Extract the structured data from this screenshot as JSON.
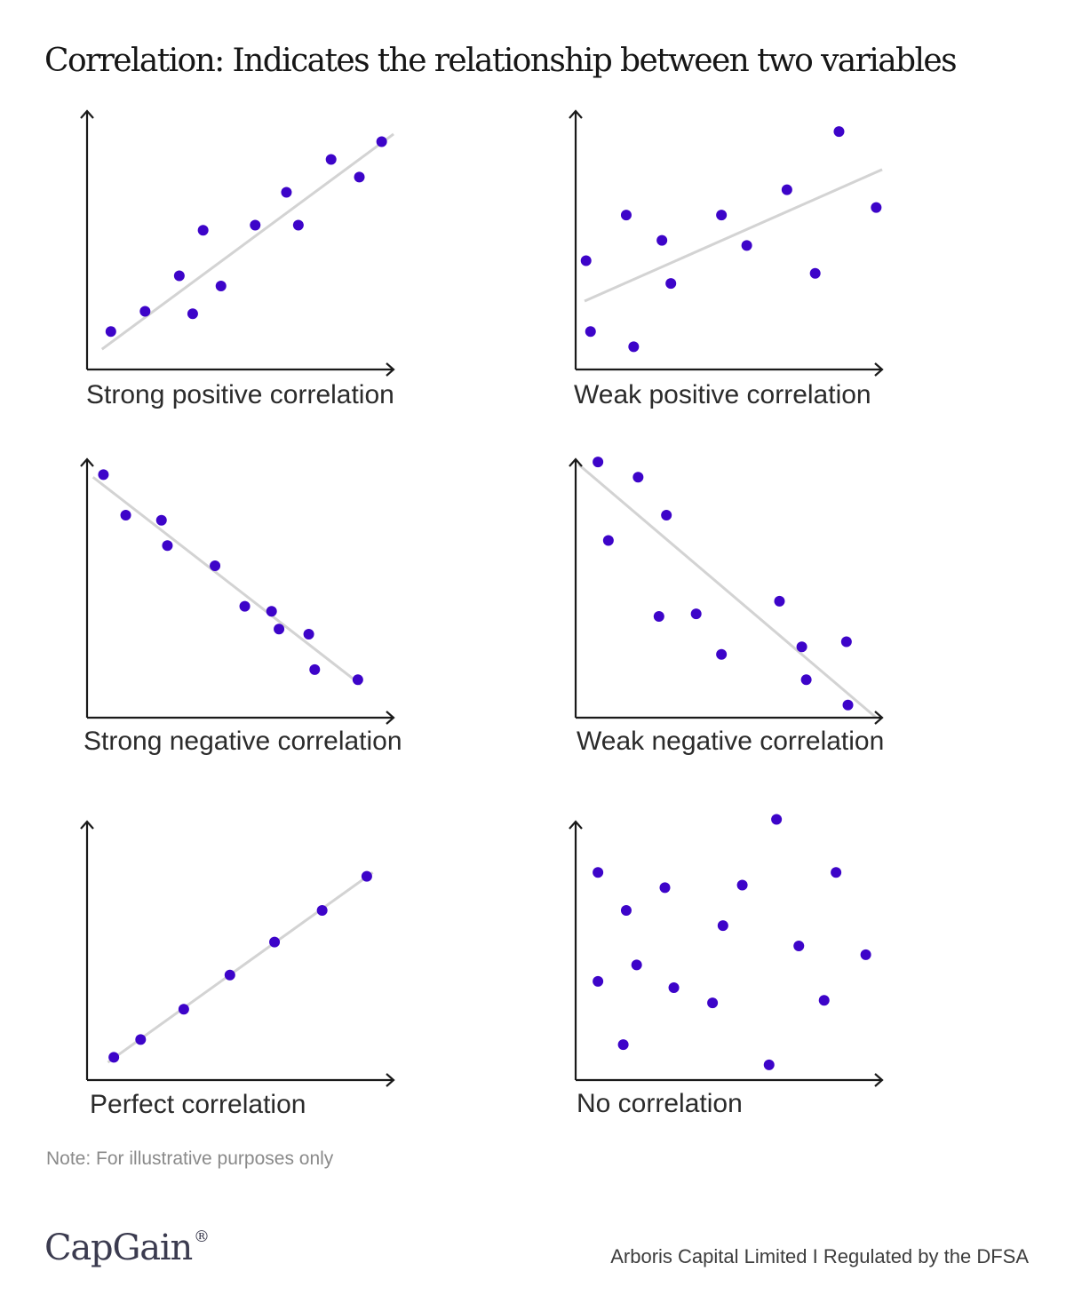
{
  "header": {
    "title": "Correlation: Indicates the relationship between two variables"
  },
  "footer": {
    "note": "Note: For illustrative purposes only",
    "brand": "CapGain",
    "brand_mark": "®",
    "regulatory": "Arboris Capital Limited I Regulated by the DFSA"
  },
  "colors": {
    "point": "#3d04c9",
    "trend": "#d3d3d3",
    "axis": "#1a1a1a"
  },
  "chart_data": [
    {
      "type": "scatter",
      "title": "Strong positive correlation",
      "xlim": [
        0,
        100
      ],
      "ylim": [
        0,
        100
      ],
      "points": [
        [
          8,
          15
        ],
        [
          19.5,
          23
        ],
        [
          31,
          37
        ],
        [
          35.5,
          22
        ],
        [
          39,
          55
        ],
        [
          45,
          33
        ],
        [
          56.5,
          57
        ],
        [
          67,
          70
        ],
        [
          71,
          57
        ],
        [
          82,
          83
        ],
        [
          91.5,
          76
        ],
        [
          99,
          90
        ]
      ],
      "trend": [
        [
          5,
          8
        ],
        [
          103,
          93
        ]
      ]
    },
    {
      "type": "scatter",
      "title": "Weak positive correlation",
      "xlim": [
        0,
        100
      ],
      "ylim": [
        0,
        100
      ],
      "points": [
        [
          3.5,
          43
        ],
        [
          5,
          15
        ],
        [
          17,
          61
        ],
        [
          19.5,
          9
        ],
        [
          29,
          51
        ],
        [
          32,
          34
        ],
        [
          49,
          61
        ],
        [
          57.5,
          49
        ],
        [
          71,
          71
        ],
        [
          80.5,
          38
        ],
        [
          88.5,
          94
        ],
        [
          101,
          64
        ]
      ],
      "trend": [
        [
          3,
          27
        ],
        [
          103,
          79
        ]
      ]
    },
    {
      "type": "scatter",
      "title": "Strong negative correlation",
      "xlim": [
        0,
        100
      ],
      "ylim": [
        0,
        100
      ],
      "points": [
        [
          5.5,
          96
        ],
        [
          13,
          80
        ],
        [
          25,
          78
        ],
        [
          27,
          68
        ],
        [
          43,
          60
        ],
        [
          53,
          44
        ],
        [
          62,
          42
        ],
        [
          64.5,
          35
        ],
        [
          74.5,
          33
        ],
        [
          76.5,
          19
        ],
        [
          91,
          15
        ]
      ],
      "trend": [
        [
          2,
          95
        ],
        [
          92,
          13
        ]
      ]
    },
    {
      "type": "scatter",
      "title": "Weak negative correlation",
      "xlim": [
        0,
        100
      ],
      "ylim": [
        0,
        100
      ],
      "points": [
        [
          7.5,
          101
        ],
        [
          11,
          70
        ],
        [
          21,
          95
        ],
        [
          28,
          40
        ],
        [
          30.5,
          80
        ],
        [
          40.5,
          41
        ],
        [
          49,
          25
        ],
        [
          68.5,
          46
        ],
        [
          76,
          28
        ],
        [
          77.5,
          15
        ],
        [
          91,
          30
        ],
        [
          91.5,
          5
        ]
      ],
      "trend": [
        [
          1,
          100
        ],
        [
          101,
          0
        ]
      ]
    },
    {
      "type": "scatter",
      "title": "Perfect correlation",
      "xlim": [
        0,
        100
      ],
      "ylim": [
        0,
        100
      ],
      "points": [
        [
          9,
          9
        ],
        [
          18,
          16
        ],
        [
          32.5,
          28
        ],
        [
          48,
          41.5
        ],
        [
          63,
          54.5
        ],
        [
          79,
          67
        ],
        [
          94,
          80.5
        ]
      ],
      "trend": [
        [
          7,
          7
        ],
        [
          96,
          82
        ]
      ]
    },
    {
      "type": "scatter",
      "title": "No correlation",
      "xlim": [
        0,
        100
      ],
      "ylim": [
        0,
        100
      ],
      "points": [
        [
          7.5,
          82
        ],
        [
          17,
          67
        ],
        [
          30,
          76
        ],
        [
          56,
          77
        ],
        [
          67.5,
          103
        ],
        [
          87.5,
          82
        ],
        [
          49.5,
          61
        ],
        [
          75,
          53
        ],
        [
          97.5,
          49.5
        ],
        [
          20.5,
          45.5
        ],
        [
          7.5,
          39
        ],
        [
          33,
          36.5
        ],
        [
          46,
          30.5
        ],
        [
          83.5,
          31.5
        ],
        [
          16,
          14
        ],
        [
          65,
          6
        ]
      ],
      "trend": []
    }
  ]
}
